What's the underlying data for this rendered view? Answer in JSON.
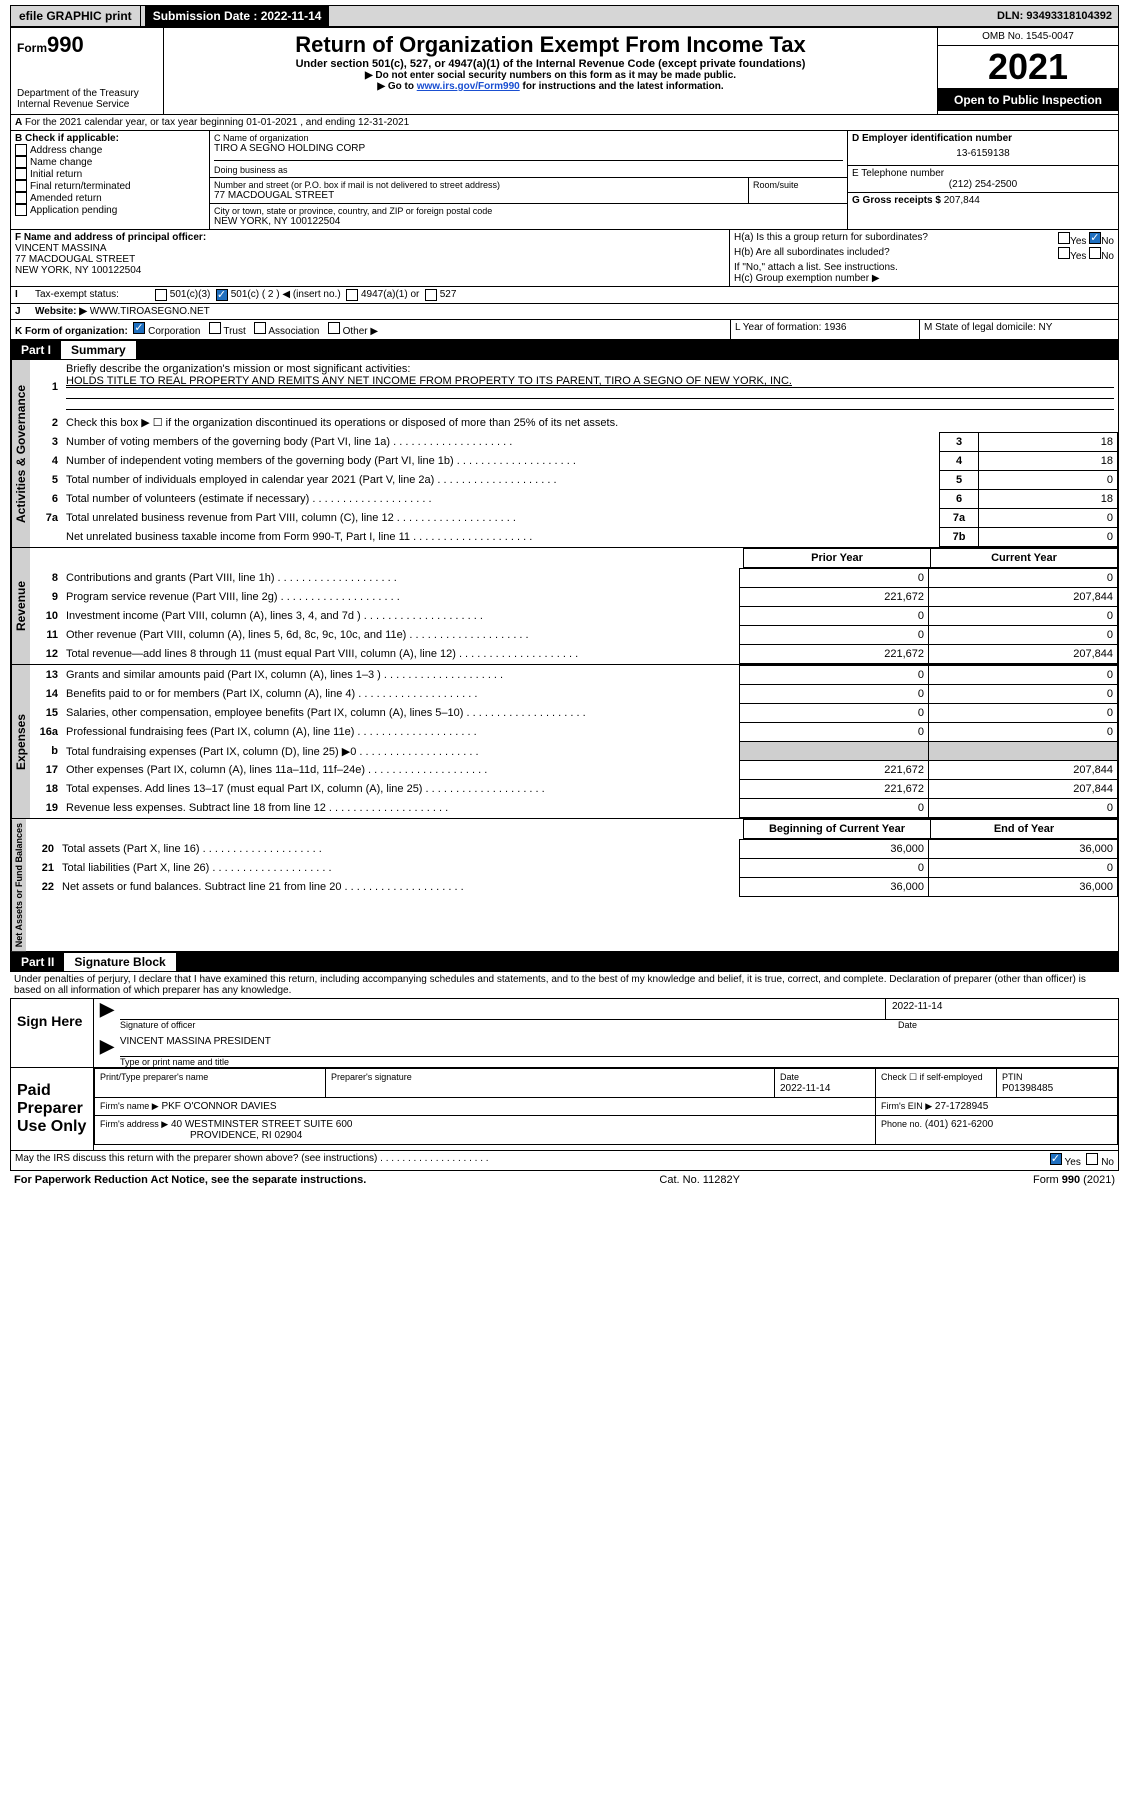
{
  "topbar": {
    "efile": "efile GRAPHIC print",
    "subdate_label": "Submission Date : 2022-11-14",
    "dln": "DLN: 93493318104392"
  },
  "header": {
    "form_small": "Form",
    "form_big": "990",
    "dept1": "Department of the Treasury",
    "dept2": "Internal Revenue Service",
    "title": "Return of Organization Exempt From Income Tax",
    "sub1": "Under section 501(c), 527, or 4947(a)(1) of the Internal Revenue Code (except private foundations)",
    "sub2": "▶ Do not enter social security numbers on this form as it may be made public.",
    "sub3_pre": "▶ Go to ",
    "sub3_link": "www.irs.gov/Form990",
    "sub3_post": " for instructions and the latest information.",
    "omb": "OMB No. 1545-0047",
    "year": "2021",
    "open": "Open to Public Inspection"
  },
  "A": {
    "text": "For the 2021 calendar year, or tax year beginning 01-01-2021    , and ending 12-31-2021"
  },
  "B": {
    "label": "B Check if applicable:",
    "opts": [
      "Address change",
      "Name change",
      "Initial return",
      "Final return/terminated",
      "Amended return",
      "Application pending"
    ]
  },
  "C": {
    "name_label": "C Name of organization",
    "name": "TIRO A SEGNO HOLDING CORP",
    "dba_label": "Doing business as",
    "street_label": "Number and street (or P.O. box if mail is not delivered to street address)",
    "room_label": "Room/suite",
    "street": "77 MACDOUGAL STREET",
    "city_label": "City or town, state or province, country, and ZIP or foreign postal code",
    "city": "NEW YORK, NY  100122504"
  },
  "D": {
    "label": "D Employer identification number",
    "value": "13-6159138"
  },
  "E": {
    "label": "E Telephone number",
    "value": "(212) 254-2500"
  },
  "G": {
    "label": "G Gross receipts $",
    "value": "207,844"
  },
  "F": {
    "label": "F  Name and address of principal officer:",
    "l1": "VINCENT MASSINA",
    "l2": "77 MACDOUGAL STREET",
    "l3": "NEW YORK, NY  100122504"
  },
  "H": {
    "a": "H(a)  Is this a group return for subordinates?",
    "b": "H(b)  Are all subordinates included?",
    "b_note": "If \"No,\" attach a list. See instructions.",
    "c": "H(c)  Group exemption number ▶",
    "yes": "Yes",
    "no": "No"
  },
  "I": {
    "label": "Tax-exempt status:",
    "o1": "501(c)(3)",
    "o2": "501(c) ( 2 ) ◀ (insert no.)",
    "o3": "4947(a)(1) or",
    "o4": "527"
  },
  "J": {
    "label": "Website: ▶",
    "value": "WWW.TIROASEGNO.NET"
  },
  "K": {
    "label": "K Form of organization:",
    "opts": [
      "Corporation",
      "Trust",
      "Association",
      "Other ▶"
    ]
  },
  "L": {
    "label": "L Year of formation: 1936"
  },
  "M": {
    "label": "M State of legal domicile: NY"
  },
  "part1": {
    "tab": "Part I",
    "title": "Summary",
    "q1": "Briefly describe the organization's mission or most significant activities:",
    "q1v": "HOLDS TITLE TO REAL PROPERTY AND REMITS ANY NET INCOME FROM PROPERTY TO ITS PARENT, TIRO A SEGNO OF NEW YORK, INC.",
    "q2": "Check this box ▶ ☐  if the organization discontinued its operations or disposed of more than 25% of its net assets.",
    "rows_small": [
      {
        "n": "3",
        "t": "Number of voting members of the governing body (Part VI, line 1a)",
        "c": "3",
        "v": "18"
      },
      {
        "n": "4",
        "t": "Number of independent voting members of the governing body (Part VI, line 1b)",
        "c": "4",
        "v": "18"
      },
      {
        "n": "5",
        "t": "Total number of individuals employed in calendar year 2021 (Part V, line 2a)",
        "c": "5",
        "v": "0"
      },
      {
        "n": "6",
        "t": "Total number of volunteers (estimate if necessary)",
        "c": "6",
        "v": "18"
      },
      {
        "n": "7a",
        "t": "Total unrelated business revenue from Part VIII, column (C), line 12",
        "c": "7a",
        "v": "0"
      },
      {
        "n": "",
        "t": "Net unrelated business taxable income from Form 990-T, Part I, line 11",
        "c": "7b",
        "v": "0"
      }
    ],
    "col_prior": "Prior Year",
    "col_curr": "Current Year",
    "rev": [
      {
        "n": "8",
        "t": "Contributions and grants (Part VIII, line 1h)",
        "p": "0",
        "c": "0"
      },
      {
        "n": "9",
        "t": "Program service revenue (Part VIII, line 2g)",
        "p": "221,672",
        "c": "207,844"
      },
      {
        "n": "10",
        "t": "Investment income (Part VIII, column (A), lines 3, 4, and 7d )",
        "p": "0",
        "c": "0"
      },
      {
        "n": "11",
        "t": "Other revenue (Part VIII, column (A), lines 5, 6d, 8c, 9c, 10c, and 11e)",
        "p": "0",
        "c": "0"
      },
      {
        "n": "12",
        "t": "Total revenue—add lines 8 through 11 (must equal Part VIII, column (A), line 12)",
        "p": "221,672",
        "c": "207,844"
      }
    ],
    "exp": [
      {
        "n": "13",
        "t": "Grants and similar amounts paid (Part IX, column (A), lines 1–3 )",
        "p": "0",
        "c": "0"
      },
      {
        "n": "14",
        "t": "Benefits paid to or for members (Part IX, column (A), line 4)",
        "p": "0",
        "c": "0"
      },
      {
        "n": "15",
        "t": "Salaries, other compensation, employee benefits (Part IX, column (A), lines 5–10)",
        "p": "0",
        "c": "0"
      },
      {
        "n": "16a",
        "t": "Professional fundraising fees (Part IX, column (A), line 11e)",
        "p": "0",
        "c": "0"
      },
      {
        "n": "b",
        "t": "Total fundraising expenses (Part IX, column (D), line 25) ▶0",
        "p": "",
        "c": "",
        "gray": true
      },
      {
        "n": "17",
        "t": "Other expenses (Part IX, column (A), lines 11a–11d, 11f–24e)",
        "p": "221,672",
        "c": "207,844"
      },
      {
        "n": "18",
        "t": "Total expenses. Add lines 13–17 (must equal Part IX, column (A), line 25)",
        "p": "221,672",
        "c": "207,844"
      },
      {
        "n": "19",
        "t": "Revenue less expenses. Subtract line 18 from line 12",
        "p": "0",
        "c": "0"
      }
    ],
    "col_begin": "Beginning of Current Year",
    "col_end": "End of Year",
    "net": [
      {
        "n": "20",
        "t": "Total assets (Part X, line 16)",
        "p": "36,000",
        "c": "36,000"
      },
      {
        "n": "21",
        "t": "Total liabilities (Part X, line 26)",
        "p": "0",
        "c": "0"
      },
      {
        "n": "22",
        "t": "Net assets or fund balances. Subtract line 21 from line 20",
        "p": "36,000",
        "c": "36,000"
      }
    ],
    "vtab_act": "Activities & Governance",
    "vtab_rev": "Revenue",
    "vtab_exp": "Expenses",
    "vtab_net": "Net Assets or Fund Balances"
  },
  "part2": {
    "tab": "Part II",
    "title": "Signature Block",
    "decl": "Under penalties of perjury, I declare that I have examined this return, including accompanying schedules and statements, and to the best of my knowledge and belief, it is true, correct, and complete. Declaration of preparer (other than officer) is based on all information of which preparer has any knowledge."
  },
  "sign": {
    "here": "Sign Here",
    "sig_label": "Signature of officer",
    "date_label": "Date",
    "date": "2022-11-14",
    "name": "VINCENT MASSINA  PRESIDENT",
    "name_label": "Type or print name and title"
  },
  "prep": {
    "here": "Paid Preparer Use Only",
    "h1": "Print/Type preparer's name",
    "h2": "Preparer's signature",
    "h3": "Date",
    "h3v": "2022-11-14",
    "h4": "Check ☐ if self-employed",
    "h5": "PTIN",
    "h5v": "P01398485",
    "firm_label": "Firm's name    ▶",
    "firm": "PKF O'CONNOR DAVIES",
    "ein_label": "Firm's EIN ▶",
    "ein": "27-1728945",
    "addr_label": "Firm's address ▶",
    "addr1": "40 WESTMINSTER STREET SUITE 600",
    "addr2": "PROVIDENCE, RI  02904",
    "phone_label": "Phone no.",
    "phone": "(401) 621-6200"
  },
  "footer": {
    "q": "May the IRS discuss this return with the preparer shown above? (see instructions)",
    "yes": "Yes",
    "no": "No",
    "pra": "For Paperwork Reduction Act Notice, see the separate instructions.",
    "cat": "Cat. No. 11282Y",
    "form": "Form 990 (2021)"
  }
}
